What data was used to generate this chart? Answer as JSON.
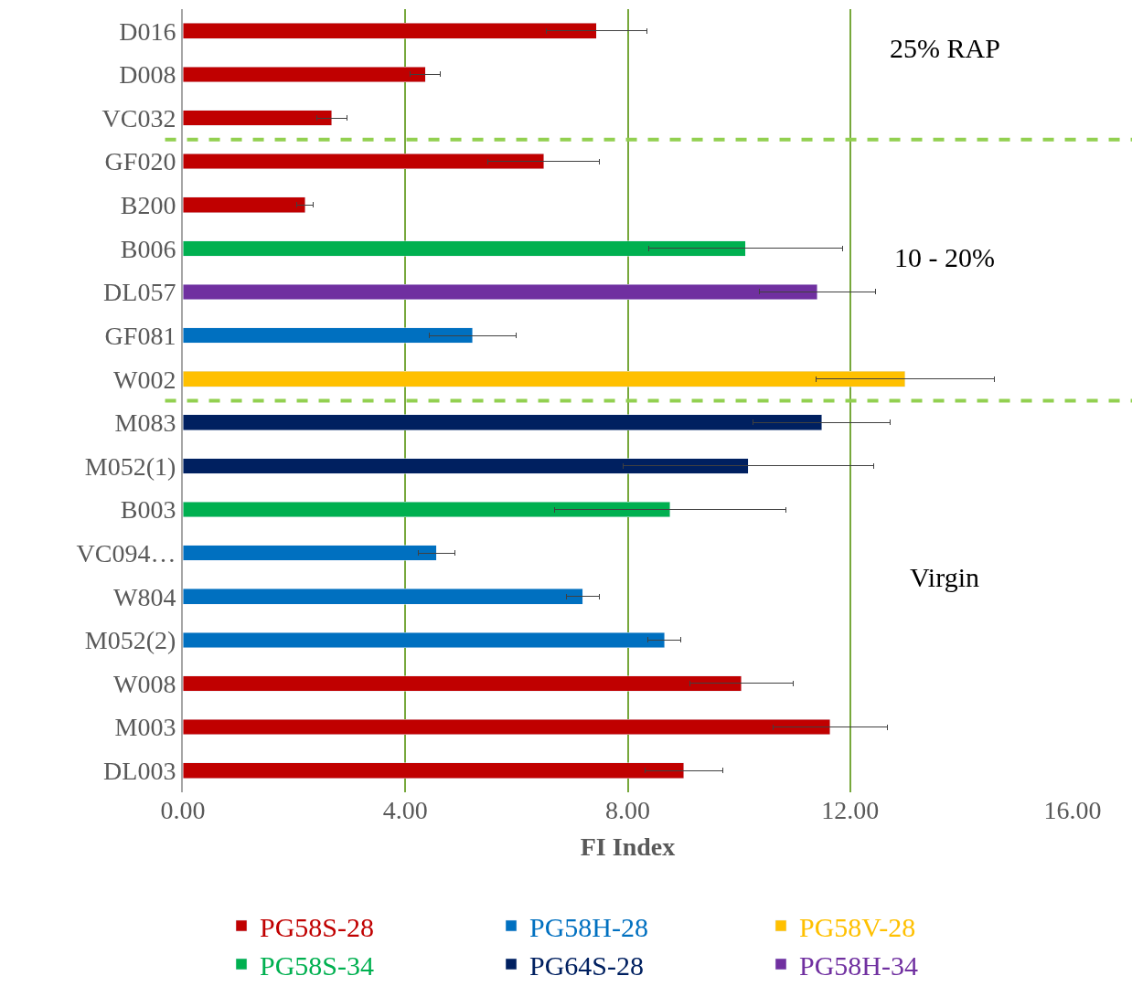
{
  "chart_data": {
    "type": "bar",
    "orientation": "horizontal",
    "stacked": true,
    "xlabel": "FI Index",
    "categories": [
      "D016",
      "D008",
      "VC032",
      "GF020",
      "B200",
      "B006",
      "DL057",
      "GF081",
      "W002",
      "M083",
      "M052(1)",
      "B003",
      "VC094…",
      "W804",
      "M052(2)",
      "W008",
      "M003",
      "DL003"
    ],
    "series": [
      {
        "name": "PG58S-28",
        "color": "#c00000",
        "values": [
          7.44,
          4.36,
          2.68,
          6.49,
          2.2,
          null,
          null,
          null,
          null,
          null,
          null,
          null,
          null,
          null,
          null,
          10.04,
          11.64,
          9.01
        ],
        "errors": [
          0.9,
          0.27,
          0.27,
          1.0,
          0.15,
          null,
          null,
          null,
          null,
          null,
          null,
          null,
          null,
          null,
          null,
          0.93,
          1.03,
          0.7
        ]
      },
      {
        "name": "PG58H-28",
        "color": "#0070c0",
        "values": [
          null,
          null,
          null,
          null,
          null,
          null,
          null,
          5.21,
          null,
          null,
          null,
          null,
          4.56,
          7.19,
          8.66,
          null,
          null,
          null
        ],
        "errors": [
          null,
          null,
          null,
          null,
          null,
          null,
          null,
          0.78,
          null,
          null,
          null,
          null,
          0.33,
          0.3,
          0.3,
          null,
          null,
          null
        ]
      },
      {
        "name": "PG58V-28",
        "color": "#ffc000",
        "values": [
          null,
          null,
          null,
          null,
          null,
          null,
          null,
          null,
          12.99,
          null,
          null,
          null,
          null,
          null,
          null,
          null,
          null,
          null
        ],
        "errors": [
          null,
          null,
          null,
          null,
          null,
          null,
          null,
          null,
          1.6,
          null,
          null,
          null,
          null,
          null,
          null,
          null,
          null,
          null
        ]
      },
      {
        "name": "PG58S-34",
        "color": "#00b050",
        "values": [
          null,
          null,
          null,
          null,
          null,
          10.12,
          null,
          null,
          null,
          null,
          null,
          8.76,
          null,
          null,
          null,
          null,
          null,
          null
        ],
        "errors": [
          null,
          null,
          null,
          null,
          null,
          1.75,
          null,
          null,
          null,
          null,
          null,
          2.08,
          null,
          null,
          null,
          null,
          null,
          null
        ]
      },
      {
        "name": "PG64S-28",
        "color": "#002060",
        "values": [
          null,
          null,
          null,
          null,
          null,
          null,
          null,
          null,
          null,
          11.49,
          10.17,
          null,
          null,
          null,
          null,
          null,
          null,
          null
        ],
        "errors": [
          null,
          null,
          null,
          null,
          null,
          null,
          null,
          null,
          null,
          1.23,
          2.26,
          null,
          null,
          null,
          null,
          null,
          null,
          null
        ]
      },
      {
        "name": "PG58H-34",
        "color": "#7030a0",
        "values": [
          null,
          null,
          null,
          null,
          null,
          null,
          11.41,
          null,
          null,
          null,
          null,
          null,
          null,
          null,
          null,
          null,
          null,
          null
        ],
        "errors": [
          null,
          null,
          null,
          null,
          null,
          null,
          1.05,
          null,
          null,
          null,
          null,
          null,
          null,
          null,
          null,
          null,
          null,
          null
        ]
      }
    ],
    "xlim": [
      0,
      16
    ],
    "xticks": [
      {
        "value": 0,
        "label": "0.00"
      },
      {
        "value": 4,
        "label": "4.00"
      },
      {
        "value": 8,
        "label": "8.00"
      },
      {
        "value": 12,
        "label": "12.00"
      },
      {
        "value": 16,
        "label": "16.00"
      }
    ],
    "grid": "x",
    "legend": "bottom",
    "annotations": [
      "25% RAP",
      "10 - 20%",
      "Virgin"
    ]
  }
}
